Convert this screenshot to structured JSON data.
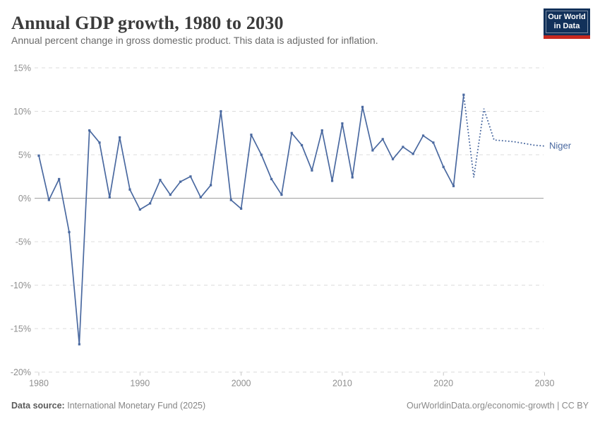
{
  "header": {
    "title": "Annual GDP growth, 1980 to 2030",
    "subtitle": "Annual percent change in gross domestic product. This data is adjusted for inflation.",
    "logo": {
      "line1": "Our World",
      "line2": "in Data"
    }
  },
  "footer": {
    "source_label": "Data source:",
    "source_text": "International Monetary Fund (2025)",
    "rights": "OurWorldinData.org/economic-growth | CC BY"
  },
  "colors": {
    "line": "#4a69a0",
    "grid": "#dcdcdc",
    "zero_line": "#a0a0a0",
    "axis_text": "#8f8f8f",
    "tick": "#c4c4c4",
    "entity_label": "#4a69a0"
  },
  "chart_data": {
    "type": "line",
    "title": "Annual GDP growth, 1980 to 2030",
    "xlabel": "",
    "ylabel": "",
    "xlim": [
      1980,
      2030
    ],
    "ylim": [
      -20,
      15
    ],
    "xticks": [
      1980,
      1990,
      2000,
      2010,
      2020,
      2030
    ],
    "yticks": [
      15,
      10,
      5,
      0,
      -5,
      -10,
      -15,
      -20
    ],
    "ytick_suffix": "%",
    "grid": "horizontal-dashed",
    "legend_position": "right-of-line",
    "series": [
      {
        "name": "Niger",
        "projection_start_year": 2022,
        "x": [
          1980,
          1981,
          1982,
          1983,
          1984,
          1985,
          1986,
          1987,
          1988,
          1989,
          1990,
          1991,
          1992,
          1993,
          1994,
          1995,
          1996,
          1997,
          1998,
          1999,
          2000,
          2001,
          2002,
          2003,
          2004,
          2005,
          2006,
          2007,
          2008,
          2009,
          2010,
          2011,
          2012,
          2013,
          2014,
          2015,
          2016,
          2017,
          2018,
          2019,
          2020,
          2021,
          2022,
          2023,
          2024,
          2025,
          2026,
          2027,
          2028,
          2029,
          2030
        ],
        "y": [
          4.9,
          -0.2,
          2.2,
          -3.9,
          -16.8,
          7.8,
          6.4,
          0.1,
          7.0,
          1.0,
          -1.3,
          -0.6,
          2.1,
          0.4,
          1.9,
          2.5,
          0.1,
          1.5,
          10.0,
          -0.2,
          -1.2,
          7.3,
          5.0,
          2.2,
          0.4,
          7.5,
          6.1,
          3.2,
          7.8,
          2.0,
          8.6,
          2.4,
          10.5,
          5.5,
          6.8,
          4.5,
          5.9,
          5.1,
          7.2,
          6.4,
          3.6,
          1.4,
          11.9,
          2.4,
          10.3,
          6.7,
          6.6,
          6.5,
          6.3,
          6.1,
          6.0
        ]
      }
    ]
  }
}
